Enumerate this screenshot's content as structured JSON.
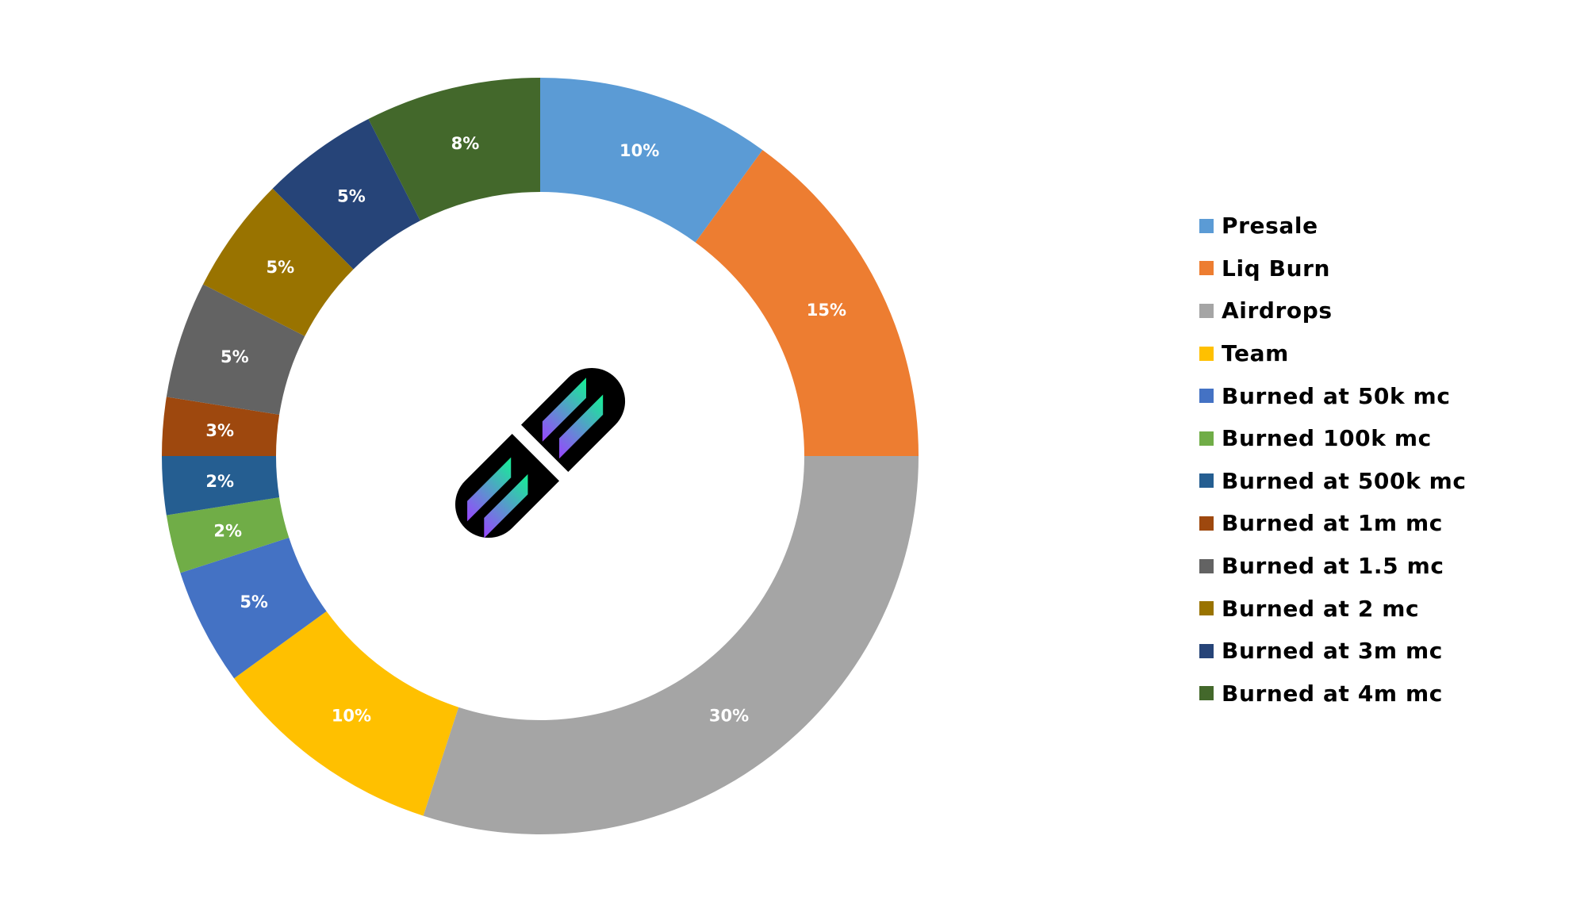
{
  "chart_data": {
    "type": "pie",
    "style": "donut",
    "title": "",
    "legend_position": "right",
    "center_icon": "solana-logo-icon",
    "slices": [
      {
        "label": "Presale",
        "value": 10,
        "display": "10%",
        "color": "#5B9BD5"
      },
      {
        "label": "Liq Burn",
        "value": 15,
        "display": "15%",
        "color": "#ED7D31"
      },
      {
        "label": "Airdrops",
        "value": 30,
        "display": "30%",
        "color": "#A5A5A5"
      },
      {
        "label": "Team",
        "value": 10,
        "display": "10%",
        "color": "#FFC000"
      },
      {
        "label": "Burned at 50k mc",
        "value": 5,
        "display": "5%",
        "color": "#4472C4"
      },
      {
        "label": "Burned 100k mc",
        "value": 2.5,
        "display": "2%",
        "color": "#70AD47"
      },
      {
        "label": "Burned at 500k mc",
        "value": 2.5,
        "display": "2%",
        "color": "#255E91"
      },
      {
        "label": "Burned at 1m mc",
        "value": 2.5,
        "display": "3%",
        "color": "#9E480E"
      },
      {
        "label": "Burned at 1.5 mc",
        "value": 5,
        "display": "5%",
        "color": "#636363"
      },
      {
        "label": "Burned at 2 mc",
        "value": 5,
        "display": "5%",
        "color": "#997300"
      },
      {
        "label": "Burned at 3m mc",
        "value": 5,
        "display": "5%",
        "color": "#264478"
      },
      {
        "label": "Burned at 4m mc",
        "value": 7.5,
        "display": "8%",
        "color": "#43682B"
      }
    ]
  }
}
